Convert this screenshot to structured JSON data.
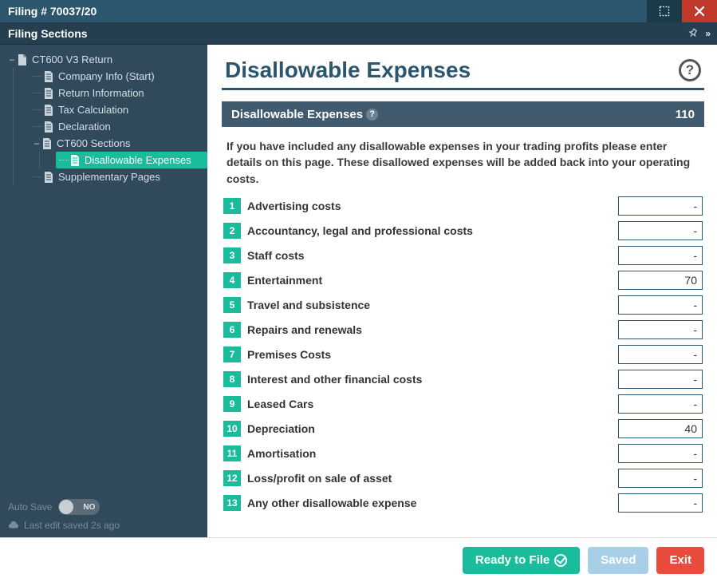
{
  "window": {
    "title": "Filing # 70037/20"
  },
  "sidebar": {
    "header": "Filing Sections",
    "tree": {
      "root": {
        "label": "CT600 V3 Return",
        "children": [
          {
            "label": "Company Info (Start)"
          },
          {
            "label": "Return Information"
          },
          {
            "label": "Tax Calculation"
          },
          {
            "label": "Declaration"
          },
          {
            "label": "CT600 Sections",
            "children": [
              {
                "label": "Disallowable Expenses",
                "selected": true
              }
            ]
          },
          {
            "label": "Supplementary Pages"
          }
        ]
      }
    },
    "autosave_label": "Auto Save",
    "autosave_value": "NO",
    "last_saved": "Last edit saved 2s ago"
  },
  "page": {
    "title": "Disallowable Expenses",
    "panel_title": "Disallowable Expenses",
    "panel_total": "110",
    "intro": "If you have included any disallowable expenses in your trading profits please enter details on this page. These disallowed expenses will be added back into your operating costs.",
    "rows": [
      {
        "n": "1",
        "label": "Advertising costs",
        "value": "-"
      },
      {
        "n": "2",
        "label": "Accountancy, legal and professional costs",
        "value": "-"
      },
      {
        "n": "3",
        "label": "Staff costs",
        "value": "-"
      },
      {
        "n": "4",
        "label": "Entertainment",
        "value": "70"
      },
      {
        "n": "5",
        "label": "Travel and subsistence",
        "value": "-"
      },
      {
        "n": "6",
        "label": "Repairs and renewals",
        "value": "-"
      },
      {
        "n": "7",
        "label": "Premises Costs",
        "value": "-"
      },
      {
        "n": "8",
        "label": "Interest and other financial costs",
        "value": "-"
      },
      {
        "n": "9",
        "label": "Leased Cars",
        "value": "-"
      },
      {
        "n": "10",
        "label": "Depreciation",
        "value": "40"
      },
      {
        "n": "11",
        "label": "Amortisation",
        "value": "-"
      },
      {
        "n": "12",
        "label": "Loss/profit on sale of asset",
        "value": "-"
      },
      {
        "n": "13",
        "label": "Any other disallowable expense",
        "value": "-"
      }
    ]
  },
  "footer": {
    "ready": "Ready to File",
    "saved": "Saved",
    "exit": "Exit"
  },
  "colors": {
    "accent": "#1abc9c",
    "header_dark": "#2c566e",
    "sidebar_bg": "#30495b",
    "panel_header": "#425a6d",
    "close_red": "#c0392b",
    "exit_red": "#e74c3c",
    "saved_blue": "#a7cfe8"
  }
}
